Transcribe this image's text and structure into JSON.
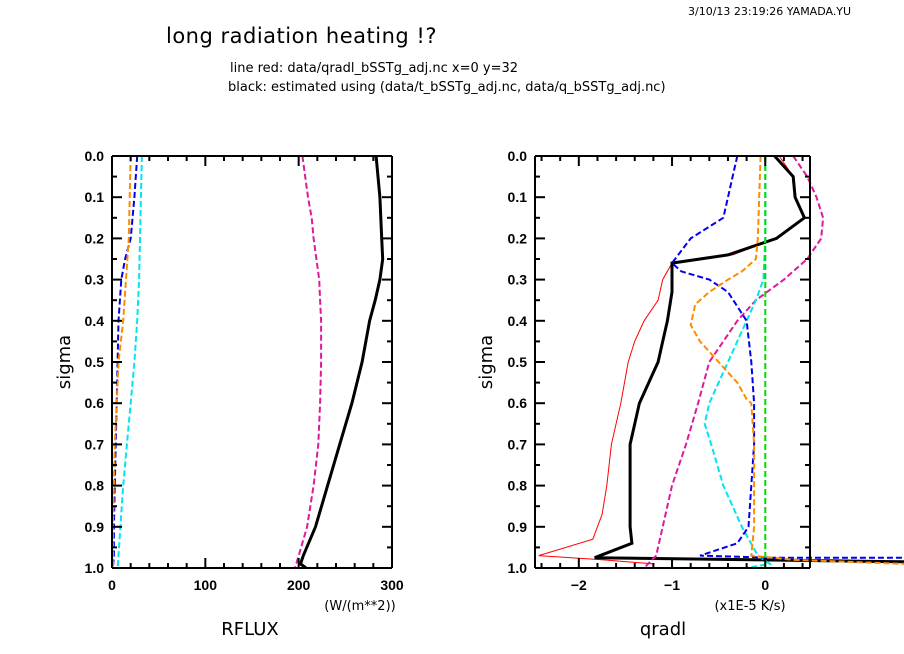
{
  "header": {
    "timestamp": "3/10/13 23:19:26 YAMADA.YU",
    "title": "long radiation heating !?",
    "subtitle_line1": "line red: data/qradl_bSSTg_adj.nc x=0 y=32",
    "subtitle_line2": "black: estimated using (data/t_bSSTg_adj.nc, data/q_bSSTg_adj.nc)"
  },
  "chart_data": [
    {
      "type": "line",
      "title": "RFLUX",
      "xlabel": "RFLUX",
      "xunits": "(W/(m**2))",
      "ylabel": "sigma",
      "xlim": [
        0,
        300
      ],
      "ylim": [
        1.0,
        0.0
      ],
      "y_inverted": true,
      "xticks": [
        0,
        100,
        200,
        300
      ],
      "xtick_labels": [
        "0",
        "100",
        "200",
        "300"
      ],
      "yticks": [
        0.0,
        0.1,
        0.2,
        0.3,
        0.4,
        0.5,
        0.6,
        0.7,
        0.8,
        0.9,
        1.0
      ],
      "ytick_labels": [
        "0.0",
        "0.1",
        "0.2",
        "0.3",
        "0.4",
        "0.5",
        "0.6",
        "0.7",
        "0.8",
        "0.9",
        "1.0"
      ],
      "grid": false,
      "series": [
        {
          "name": "black-solid",
          "color": "#000000",
          "style": "solid",
          "width": 3,
          "points": [
            [
              283,
              0.0
            ],
            [
              285,
              0.05
            ],
            [
              287,
              0.1
            ],
            [
              288,
              0.15
            ],
            [
              289,
              0.2
            ],
            [
              290,
              0.25
            ],
            [
              287,
              0.3
            ],
            [
              282,
              0.35
            ],
            [
              276,
              0.4
            ],
            [
              268,
              0.5
            ],
            [
              257,
              0.6
            ],
            [
              244,
              0.7
            ],
            [
              231,
              0.8
            ],
            [
              218,
              0.9
            ],
            [
              205,
              0.97
            ],
            [
              202,
              0.99
            ],
            [
              208,
              1.0
            ]
          ]
        },
        {
          "name": "magenta-dashed",
          "color": "#e0189a",
          "style": "dashed",
          "width": 2,
          "points": [
            [
              204,
              0.0
            ],
            [
              207,
              0.05
            ],
            [
              210,
              0.1
            ],
            [
              214,
              0.15
            ],
            [
              216,
              0.2
            ],
            [
              219,
              0.25
            ],
            [
              222,
              0.3
            ],
            [
              223,
              0.35
            ],
            [
              224,
              0.4
            ],
            [
              224,
              0.5
            ],
            [
              223,
              0.6
            ],
            [
              221,
              0.7
            ],
            [
              216,
              0.8
            ],
            [
              209,
              0.9
            ],
            [
              200,
              0.97
            ],
            [
              196,
              1.0
            ]
          ]
        },
        {
          "name": "cyan-dashed",
          "color": "#00e5ee",
          "style": "dashed",
          "width": 2,
          "points": [
            [
              32,
              0.0
            ],
            [
              31,
              0.1
            ],
            [
              30,
              0.2
            ],
            [
              29,
              0.3
            ],
            [
              27,
              0.4
            ],
            [
              24,
              0.5
            ],
            [
              20,
              0.6
            ],
            [
              16,
              0.7
            ],
            [
              12,
              0.8
            ],
            [
              9,
              0.9
            ],
            [
              7,
              0.97
            ],
            [
              6,
              1.0
            ]
          ]
        },
        {
          "name": "blue-dashed",
          "color": "#0000ee",
          "style": "dashed",
          "width": 2,
          "points": [
            [
              27,
              0.0
            ],
            [
              24,
              0.1
            ],
            [
              20,
              0.2
            ],
            [
              14,
              0.25
            ],
            [
              10,
              0.3
            ],
            [
              7,
              0.4
            ],
            [
              6,
              0.5
            ],
            [
              5,
              0.6
            ],
            [
              4,
              0.7
            ],
            [
              3,
              0.8
            ],
            [
              2,
              0.9
            ],
            [
              2,
              0.97
            ],
            [
              1,
              1.0
            ]
          ]
        },
        {
          "name": "orange-dashed",
          "color": "#ff8c00",
          "style": "dashed",
          "width": 2,
          "points": [
            [
              20,
              0.0
            ],
            [
              19,
              0.1
            ],
            [
              18,
              0.2
            ],
            [
              15,
              0.3
            ],
            [
              12,
              0.4
            ],
            [
              7,
              0.5
            ],
            [
              5,
              0.6
            ],
            [
              3,
              0.7
            ],
            [
              2,
              0.8
            ],
            [
              1,
              0.9
            ],
            [
              1,
              1.0
            ]
          ]
        },
        {
          "name": "green-dashed",
          "color": "#00dd00",
          "style": "dashed",
          "width": 2,
          "points": [
            [
              0,
              0.0
            ],
            [
              0,
              1.0
            ]
          ]
        },
        {
          "name": "red-solid",
          "color": "#ff0000",
          "style": "solid",
          "width": 1,
          "points": [
            [
              0,
              0.0
            ],
            [
              0,
              1.0
            ]
          ]
        }
      ]
    },
    {
      "type": "line",
      "title": "qradl",
      "xlabel": "qradl",
      "xunits": "(x1E-5 K/s)",
      "ylabel": "sigma",
      "xlim": [
        -2.47,
        0.48
      ],
      "ylim": [
        1.0,
        0.0
      ],
      "y_inverted": true,
      "xticks": [
        -2,
        -1,
        0
      ],
      "xtick_labels": [
        "−2",
        "−1",
        "0"
      ],
      "yticks": [
        0.0,
        0.1,
        0.2,
        0.3,
        0.4,
        0.5,
        0.6,
        0.7,
        0.8,
        0.9,
        1.0
      ],
      "ytick_labels": [
        "0.0",
        "0.1",
        "0.2",
        "0.3",
        "0.4",
        "0.5",
        "0.6",
        "0.7",
        "0.8",
        "0.9",
        "1.0"
      ],
      "grid": false,
      "series": [
        {
          "name": "red-solid",
          "color": "#ff0000",
          "style": "solid",
          "width": 1,
          "points": [
            [
              0.15,
              0.0
            ],
            [
              0.3,
              0.05
            ],
            [
              0.33,
              0.1
            ],
            [
              0.42,
              0.15
            ],
            [
              0.12,
              0.2
            ],
            [
              -0.35,
              0.24
            ],
            [
              -1.0,
              0.26
            ],
            [
              -1.1,
              0.3
            ],
            [
              -1.15,
              0.35
            ],
            [
              -1.3,
              0.4
            ],
            [
              -1.4,
              0.45
            ],
            [
              -1.47,
              0.5
            ],
            [
              -1.55,
              0.6
            ],
            [
              -1.65,
              0.7
            ],
            [
              -1.7,
              0.8
            ],
            [
              -1.75,
              0.87
            ],
            [
              -1.85,
              0.93
            ],
            [
              -2.43,
              0.97
            ],
            [
              -1.75,
              0.98
            ],
            [
              -1.2,
              0.99
            ]
          ]
        },
        {
          "name": "black-solid",
          "color": "#000000",
          "style": "solid",
          "width": 3,
          "points": [
            [
              0.1,
              0.0
            ],
            [
              0.3,
              0.05
            ],
            [
              0.32,
              0.1
            ],
            [
              0.42,
              0.15
            ],
            [
              0.12,
              0.2
            ],
            [
              -0.4,
              0.24
            ],
            [
              -1.0,
              0.26
            ],
            [
              -1.0,
              0.3
            ],
            [
              -1.0,
              0.33
            ],
            [
              -1.05,
              0.4
            ],
            [
              -1.1,
              0.45
            ],
            [
              -1.15,
              0.5
            ],
            [
              -1.35,
              0.6
            ],
            [
              -1.45,
              0.7
            ],
            [
              -1.45,
              0.8
            ],
            [
              -1.45,
              0.9
            ],
            [
              -1.43,
              0.94
            ],
            [
              -1.83,
              0.975
            ],
            [
              1.5,
              0.985
            ]
          ]
        },
        {
          "name": "magenta-dashed",
          "color": "#e0189a",
          "style": "dashed",
          "width": 2,
          "points": [
            [
              0.3,
              0.0
            ],
            [
              0.45,
              0.05
            ],
            [
              0.55,
              0.1
            ],
            [
              0.62,
              0.15
            ],
            [
              0.6,
              0.2
            ],
            [
              0.45,
              0.25
            ],
            [
              0.2,
              0.3
            ],
            [
              -0.1,
              0.35
            ],
            [
              -0.3,
              0.4
            ],
            [
              -0.45,
              0.45
            ],
            [
              -0.6,
              0.5
            ],
            [
              -0.72,
              0.6
            ],
            [
              -0.85,
              0.7
            ],
            [
              -1.0,
              0.8
            ],
            [
              -1.1,
              0.9
            ],
            [
              -1.17,
              0.97
            ],
            [
              -1.3,
              1.0
            ]
          ]
        },
        {
          "name": "cyan-dashed",
          "color": "#00e5ee",
          "style": "dashed",
          "width": 2,
          "points": [
            [
              0.0,
              0.0
            ],
            [
              0.0,
              0.2
            ],
            [
              -0.02,
              0.3
            ],
            [
              -0.1,
              0.35
            ],
            [
              -0.2,
              0.4
            ],
            [
              -0.4,
              0.5
            ],
            [
              -0.5,
              0.55
            ],
            [
              -0.6,
              0.6
            ],
            [
              -0.65,
              0.65
            ],
            [
              -0.58,
              0.7
            ],
            [
              -0.45,
              0.8
            ],
            [
              -0.25,
              0.9
            ],
            [
              -0.08,
              0.97
            ],
            [
              0.05,
              0.99
            ],
            [
              -0.2,
              1.0
            ]
          ]
        },
        {
          "name": "blue-dashed",
          "color": "#0000ee",
          "style": "dashed",
          "width": 2,
          "points": [
            [
              -0.3,
              0.0
            ],
            [
              -0.35,
              0.05
            ],
            [
              -0.4,
              0.1
            ],
            [
              -0.45,
              0.15
            ],
            [
              -0.8,
              0.2
            ],
            [
              -1.0,
              0.26
            ],
            [
              -0.9,
              0.28
            ],
            [
              -0.6,
              0.3
            ],
            [
              -0.4,
              0.33
            ],
            [
              -0.2,
              0.4
            ],
            [
              -0.15,
              0.5
            ],
            [
              -0.12,
              0.6
            ],
            [
              -0.12,
              0.7
            ],
            [
              -0.15,
              0.8
            ],
            [
              -0.18,
              0.9
            ],
            [
              -0.3,
              0.94
            ],
            [
              -0.7,
              0.97
            ],
            [
              0.05,
              0.975
            ],
            [
              1.5,
              0.975
            ]
          ]
        },
        {
          "name": "orange-dashed",
          "color": "#ff8c00",
          "style": "dashed",
          "width": 2,
          "points": [
            [
              -0.05,
              0.0
            ],
            [
              -0.08,
              0.2
            ],
            [
              -0.1,
              0.25
            ],
            [
              -0.25,
              0.28
            ],
            [
              -0.4,
              0.3
            ],
            [
              -0.6,
              0.33
            ],
            [
              -0.75,
              0.36
            ],
            [
              -0.8,
              0.41
            ],
            [
              -0.7,
              0.45
            ],
            [
              -0.5,
              0.5
            ],
            [
              -0.3,
              0.55
            ],
            [
              -0.2,
              0.59
            ],
            [
              -0.15,
              0.6
            ],
            [
              -0.12,
              0.7
            ],
            [
              -0.12,
              0.8
            ],
            [
              -0.12,
              0.9
            ],
            [
              -0.15,
              0.97
            ],
            [
              0.3,
              0.98
            ],
            [
              1.5,
              0.99
            ]
          ]
        },
        {
          "name": "green-dashed",
          "color": "#00dd00",
          "style": "dashed",
          "width": 2,
          "points": [
            [
              0.0,
              0.0
            ],
            [
              0.0,
              1.0
            ]
          ]
        }
      ]
    }
  ]
}
